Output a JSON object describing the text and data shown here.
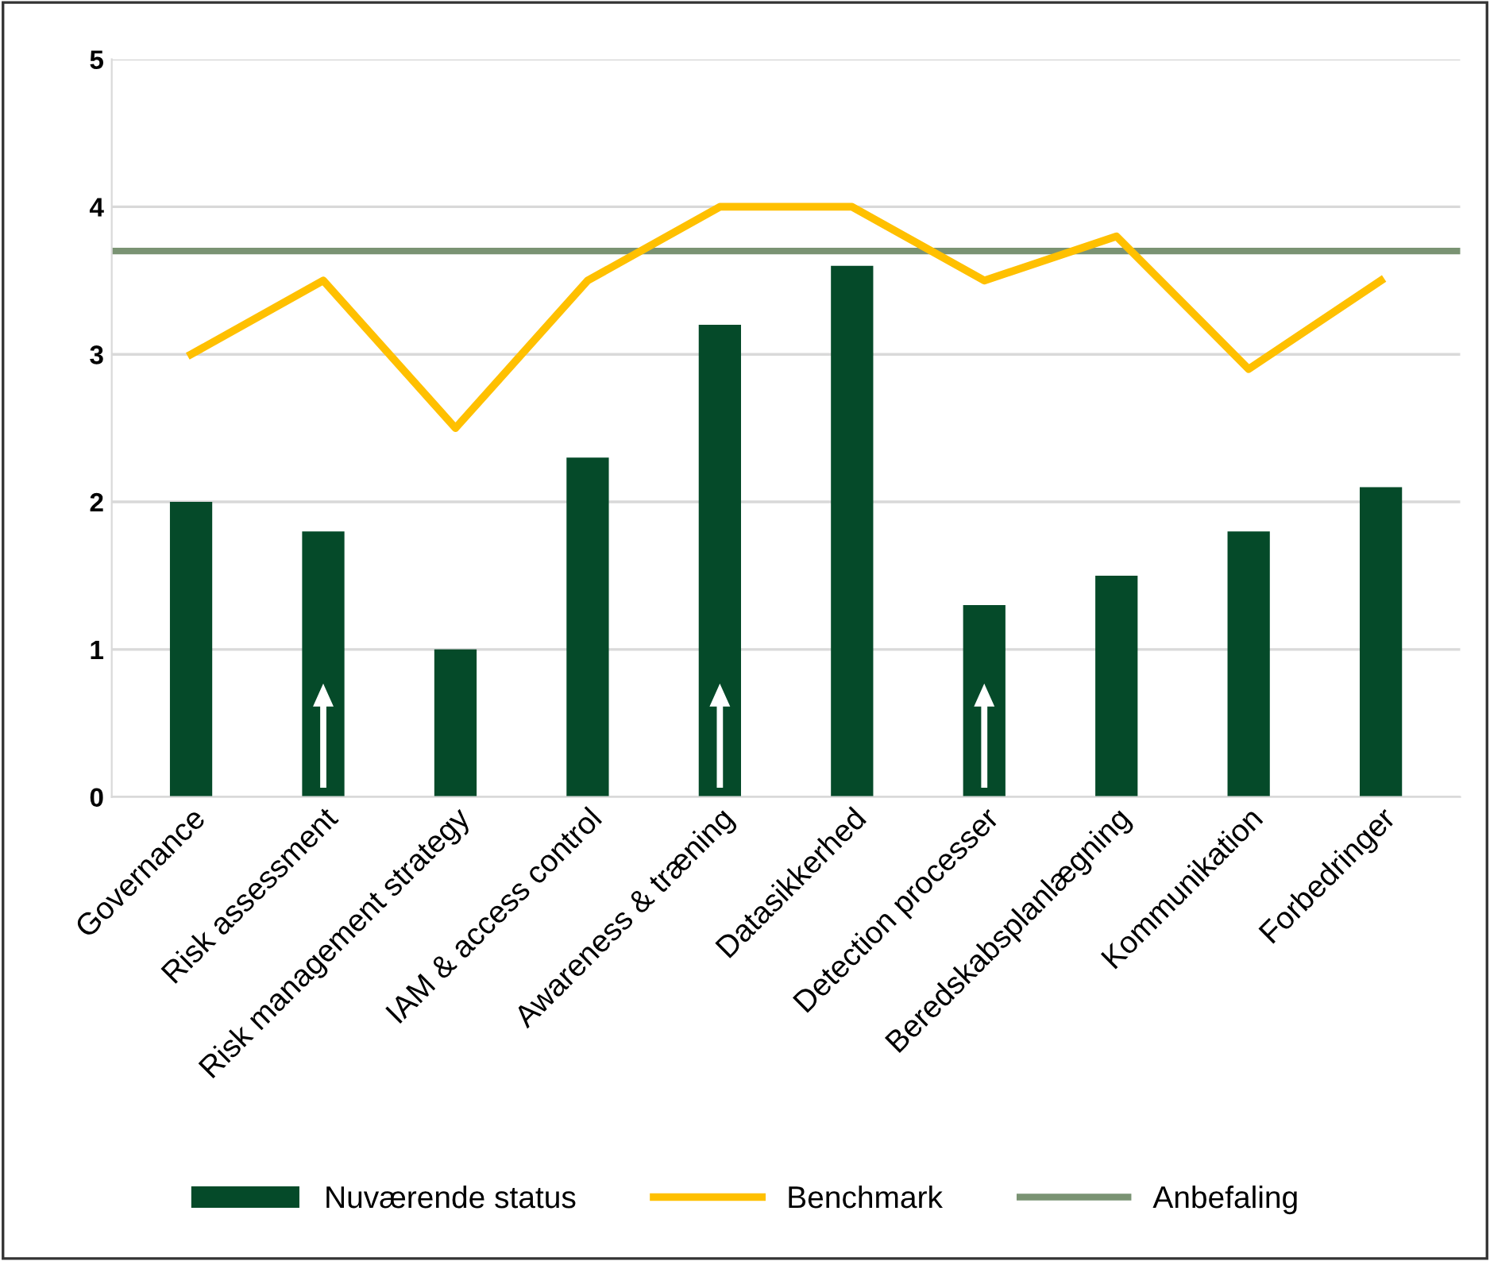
{
  "chart_data": {
    "type": "bar",
    "categories": [
      "Governance",
      "Risk assessment",
      "Risk management strategy",
      "IAM & access control",
      "Awareness & træning",
      "Datasikkerhed",
      "Detection processer",
      "Beredskabsplanlægning",
      "Kommunikation",
      "Forbedringer"
    ],
    "series": [
      {
        "name": "Nuværende status",
        "color": "#054a29",
        "values": [
          2.0,
          1.8,
          1.0,
          2.3,
          3.2,
          3.6,
          1.3,
          1.5,
          1.8,
          2.1
        ]
      },
      {
        "name": "Benchmark",
        "type": "line",
        "color": "#ffc000",
        "values": [
          3.0,
          3.5,
          2.5,
          3.5,
          4.0,
          4.0,
          3.5,
          3.8,
          2.9,
          3.5
        ]
      }
    ],
    "ref_lines": [
      {
        "axis": "y",
        "value": 3.7,
        "label": "Anbefaling",
        "color": "#7a9373"
      }
    ],
    "ylim": [
      0,
      5
    ],
    "yticks": [
      0,
      1,
      2,
      3,
      4,
      5
    ],
    "grid": "y",
    "legend": "bottom",
    "marker": "none",
    "line_style": "solid"
  }
}
